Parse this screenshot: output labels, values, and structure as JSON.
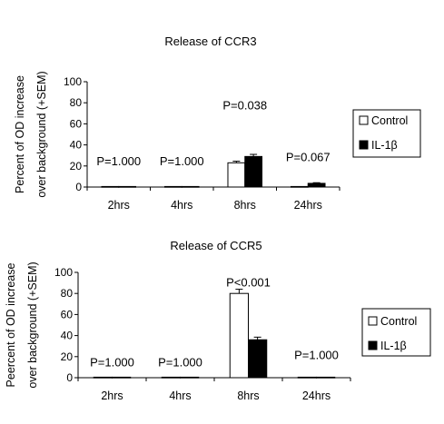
{
  "chart_data": [
    {
      "type": "bar",
      "title": "Release of CCR3",
      "ylabel_line1": "Percent of OD increase",
      "ylabel_line2": "over background (+SEM)",
      "categories": [
        "2hrs",
        "4hrs",
        "8hrs",
        "24hrs"
      ],
      "ylim": [
        0,
        100
      ],
      "yticks": [
        0,
        20,
        40,
        60,
        80,
        100
      ],
      "series": [
        {
          "name": "Control",
          "values": [
            0.5,
            0.5,
            23,
            0.5
          ],
          "errors": [
            0.2,
            0.2,
            1.5,
            0.2
          ],
          "color": "#ffffff"
        },
        {
          "name": "IL-1β",
          "values": [
            0.5,
            0.5,
            29,
            3.5
          ],
          "errors": [
            0.2,
            0.2,
            2,
            0.6
          ],
          "color": "#000000"
        }
      ],
      "annotations": [
        "P=1.000",
        "P=1.000",
        "P=0.038",
        "P=0.067"
      ],
      "annotation_levels": [
        25,
        25,
        78,
        29
      ],
      "legend_position": "right"
    },
    {
      "type": "bar",
      "title": "Release of CCR5",
      "ylabel_line1": "Peercent of OD increase",
      "ylabel_line2": "over background (+SEM)",
      "categories": [
        "2hrs",
        "4hrs",
        "8hrs",
        "24hrs"
      ],
      "ylim": [
        0,
        100
      ],
      "yticks": [
        0,
        20,
        40,
        60,
        80,
        100
      ],
      "series": [
        {
          "name": "Control",
          "values": [
            0.5,
            0.5,
            80,
            0.5
          ],
          "errors": [
            0.2,
            0.2,
            4,
            0.2
          ],
          "color": "#ffffff"
        },
        {
          "name": "IL-1β",
          "values": [
            0.5,
            0.5,
            36,
            0.5
          ],
          "errors": [
            0.2,
            0.2,
            2.5,
            0.2
          ],
          "color": "#000000"
        }
      ],
      "annotations": [
        "P=1.000",
        "P=1.000",
        "P<0.001",
        "P=1.000"
      ],
      "annotation_levels": [
        15,
        15,
        91,
        22
      ],
      "legend_position": "right"
    }
  ]
}
